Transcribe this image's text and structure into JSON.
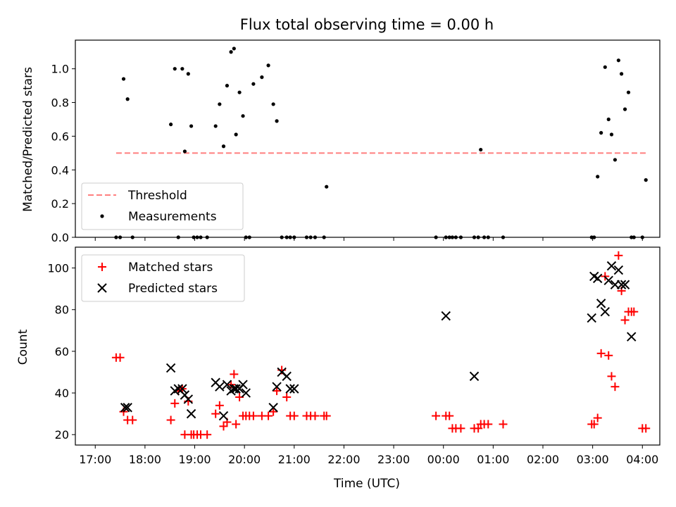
{
  "chart_data": [
    {
      "type": "scatter",
      "title": "Flux total observing time = 0.00 h",
      "ylabel": "Matched/Predicted stars",
      "xlabel": "",
      "xlim": [
        -0.4,
        11.35
      ],
      "ylim": [
        0,
        1.17
      ],
      "yticks": [
        0.0,
        0.2,
        0.4,
        0.6,
        0.8,
        1.0
      ],
      "ytick_labels": [
        "0.0",
        "0.2",
        "0.4",
        "0.6",
        "0.8",
        "1.0"
      ],
      "xticks": [
        0,
        1,
        2,
        3,
        4,
        5,
        6,
        7,
        8,
        9,
        10,
        11
      ],
      "grid": false,
      "legend_position": "lower-left",
      "threshold": {
        "name": "Threshold",
        "y": 0.5,
        "x_range": [
          0.42,
          11.08
        ],
        "color": "#ff7f7f"
      },
      "series": [
        {
          "name": "Measurements",
          "color": "#000000",
          "marker": "dot",
          "x": [
            0.42,
            0.5,
            0.57,
            0.65,
            0.75,
            1.52,
            1.6,
            1.67,
            1.75,
            1.8,
            1.87,
            1.93,
            1.98,
            2.05,
            2.12,
            2.25,
            2.42,
            2.5,
            2.58,
            2.65,
            2.73,
            2.79,
            2.83,
            2.9,
            2.97,
            3.03,
            3.1,
            3.18,
            3.35,
            3.48,
            3.58,
            3.65,
            3.75,
            3.85,
            3.92,
            4.0,
            4.25,
            4.33,
            4.42,
            4.6,
            4.65,
            6.85,
            7.05,
            7.12,
            7.18,
            7.25,
            7.35,
            7.62,
            7.7,
            7.75,
            7.82,
            7.9,
            8.2,
            9.98,
            10.03,
            10.1,
            10.17,
            10.25,
            10.32,
            10.38,
            10.45,
            10.52,
            10.58,
            10.65,
            10.72,
            10.78,
            10.83,
            11.0,
            11.07
          ],
          "y": [
            0,
            0,
            0.94,
            0.82,
            0,
            0.67,
            1.0,
            0,
            1.0,
            0.51,
            0.97,
            0.66,
            0,
            0,
            0,
            0,
            0.66,
            0.79,
            0.54,
            0.9,
            1.1,
            1.12,
            0.61,
            0.86,
            0.72,
            0,
            0,
            0.91,
            0.95,
            1.02,
            0.79,
            0.69,
            0,
            0,
            0,
            0,
            0,
            0,
            0,
            0,
            0.3,
            0,
            0,
            0,
            0,
            0,
            0,
            0,
            0,
            0.52,
            0,
            0,
            0,
            0,
            0,
            0.36,
            0.62,
            1.01,
            0.7,
            0.61,
            0.46,
            1.05,
            0.97,
            0.76,
            0.86,
            0,
            0,
            0,
            0.34
          ]
        }
      ]
    },
    {
      "type": "scatter",
      "title": "",
      "ylabel": "Count",
      "xlabel": "Time (UTC)",
      "xlim": [
        -0.4,
        11.35
      ],
      "ylim": [
        15,
        110
      ],
      "yticks": [
        20,
        40,
        60,
        80,
        100
      ],
      "ytick_labels": [
        "20",
        "40",
        "60",
        "80",
        "100"
      ],
      "xticks": [
        0,
        1,
        2,
        3,
        4,
        5,
        6,
        7,
        8,
        9,
        10,
        11
      ],
      "xtick_labels": [
        "17:00",
        "18:00",
        "19:00",
        "20:00",
        "21:00",
        "22:00",
        "23:00",
        "00:00",
        "01:00",
        "02:00",
        "03:00",
        "04:00"
      ],
      "grid": false,
      "legend_position": "top-left",
      "series": [
        {
          "name": "Matched stars",
          "color": "#ff0000",
          "marker": "plus",
          "x": [
            0.42,
            0.5,
            0.57,
            0.65,
            0.75,
            1.52,
            1.6,
            1.67,
            1.75,
            1.8,
            1.87,
            1.93,
            1.98,
            2.05,
            2.12,
            2.25,
            2.42,
            2.5,
            2.58,
            2.65,
            2.73,
            2.79,
            2.83,
            2.9,
            2.97,
            3.03,
            3.1,
            3.18,
            3.35,
            3.48,
            3.58,
            3.65,
            3.75,
            3.85,
            3.92,
            4.0,
            4.25,
            4.33,
            4.42,
            4.6,
            4.65,
            6.85,
            7.05,
            7.12,
            7.18,
            7.25,
            7.35,
            7.62,
            7.7,
            7.75,
            7.82,
            7.9,
            8.2,
            9.98,
            10.03,
            10.1,
            10.17,
            10.25,
            10.32,
            10.38,
            10.45,
            10.52,
            10.58,
            10.65,
            10.72,
            10.78,
            10.83,
            11.0,
            11.07
          ],
          "y": [
            57,
            57,
            31,
            27,
            27,
            27,
            35,
            41,
            42,
            20,
            36,
            20,
            20,
            20,
            20,
            20,
            30,
            34,
            24,
            26,
            44,
            49,
            25,
            38,
            29,
            29,
            29,
            29,
            29,
            29,
            31,
            41,
            51,
            38,
            29,
            29,
            29,
            29,
            29,
            29,
            29,
            29,
            29,
            29,
            23,
            23,
            23,
            23,
            23,
            25,
            25,
            25,
            25,
            25,
            25,
            28,
            59,
            96,
            58,
            48,
            43,
            106,
            89,
            75,
            79,
            79,
            79,
            23,
            23
          ]
        },
        {
          "name": "Predicted stars",
          "color": "#000000",
          "marker": "x",
          "x": [
            0.6,
            0.65,
            1.52,
            1.6,
            1.67,
            1.75,
            1.8,
            1.87,
            1.93,
            2.42,
            2.5,
            2.58,
            2.65,
            2.73,
            2.79,
            2.83,
            2.9,
            2.97,
            3.03,
            3.58,
            3.65,
            3.75,
            3.85,
            3.92,
            4.0,
            7.05,
            7.62,
            9.98,
            10.03,
            10.1,
            10.17,
            10.25,
            10.32,
            10.38,
            10.45,
            10.52,
            10.58,
            10.65,
            10.78
          ],
          "y": [
            33,
            33,
            52,
            41,
            42,
            42,
            39,
            37,
            30,
            45,
            43,
            29,
            44,
            41,
            42,
            42,
            42,
            44,
            40,
            33,
            43,
            50,
            48,
            42,
            42,
            77,
            48,
            76,
            96,
            95,
            83,
            79,
            94,
            101,
            92,
            99,
            92,
            92,
            67
          ]
        }
      ]
    }
  ]
}
